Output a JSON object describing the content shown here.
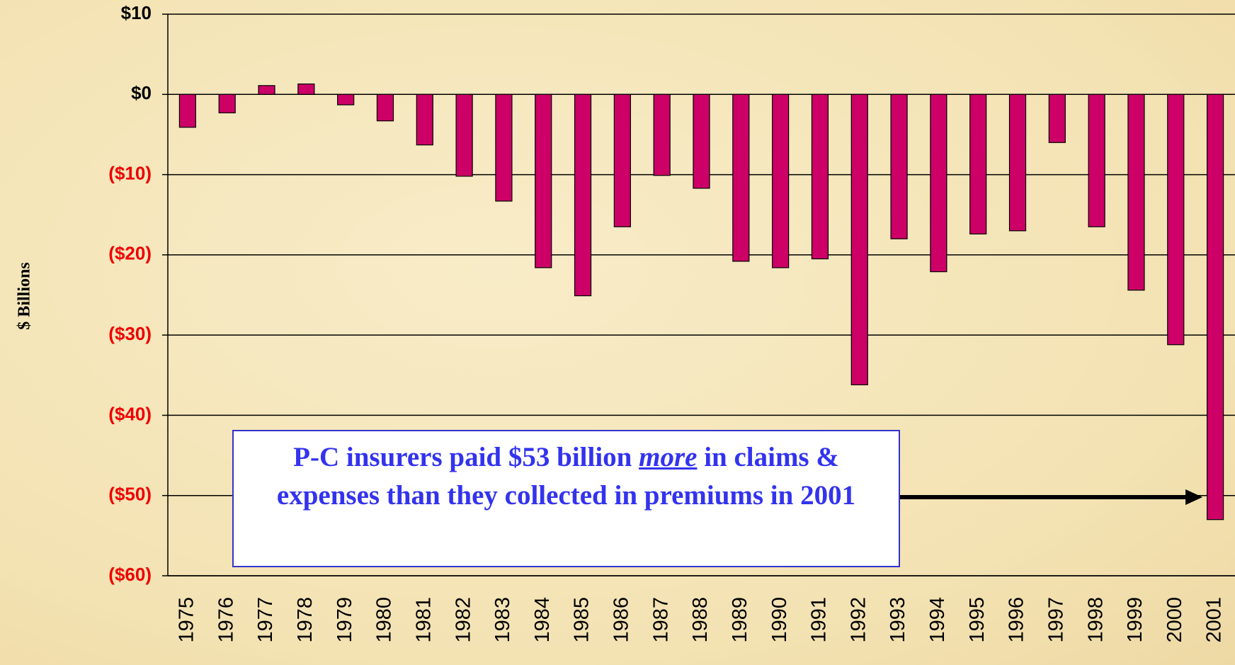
{
  "chart_data": {
    "type": "bar",
    "y_label": "$ Billions",
    "categories": [
      "1975",
      "1976",
      "1977",
      "1978",
      "1979",
      "1980",
      "1981",
      "1982",
      "1983",
      "1984",
      "1985",
      "1986",
      "1987",
      "1988",
      "1989",
      "1990",
      "1991",
      "1992",
      "1993",
      "1994",
      "1995",
      "1996",
      "1997",
      "1998",
      "1999",
      "2000",
      "2001"
    ],
    "values": [
      -4.1,
      -2.3,
      1.1,
      1.3,
      -1.3,
      -3.3,
      -6.3,
      -10.2,
      -13.3,
      -21.6,
      -25.1,
      -16.5,
      -10.1,
      -11.7,
      -20.8,
      -21.6,
      -20.5,
      -36.2,
      -18.0,
      -22.1,
      -17.4,
      -17.0,
      -6.0,
      -16.5,
      -24.4,
      -31.2,
      -53.0
    ],
    "color": "#cc0066",
    "ylim": [
      -60,
      10
    ],
    "yticks": [
      {
        "value": 10,
        "label": "$10"
      },
      {
        "value": 0,
        "label": "$0"
      },
      {
        "value": -10,
        "label": "($10)"
      },
      {
        "value": -20,
        "label": "($20)"
      },
      {
        "value": -30,
        "label": "($30)"
      },
      {
        "value": -40,
        "label": "($40)"
      },
      {
        "value": -50,
        "label": "($50)"
      },
      {
        "value": -60,
        "label": "($60)"
      }
    ],
    "negative_tick_color": "#ee0000",
    "grid": true,
    "annotation": {
      "before": "P-C insurers paid $53 billion ",
      "emphasis": "more",
      "after": " in claims & expenses than they collected in premiums in 2001"
    }
  }
}
